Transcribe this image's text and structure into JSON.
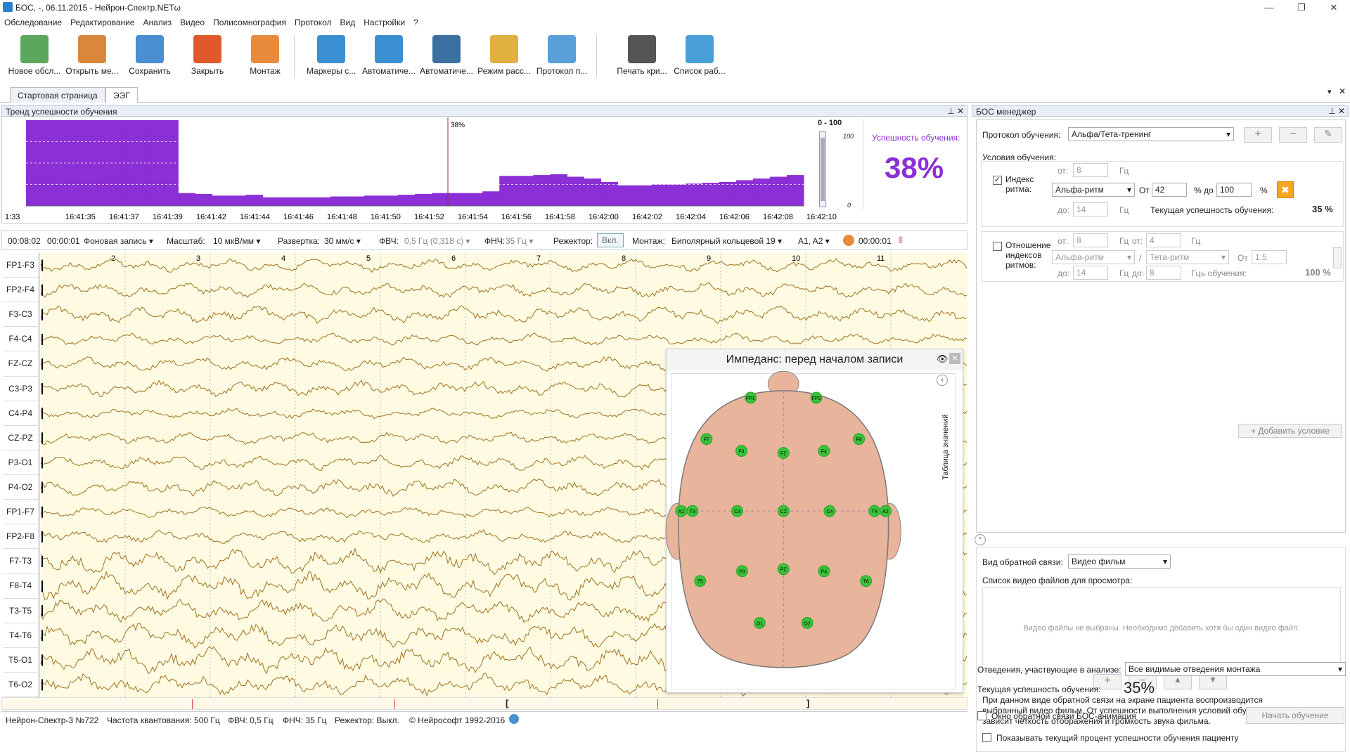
{
  "window": {
    "title": "БОС, -, 06.11.2015 - Нейрон-Спектр.NETω",
    "controls": [
      "—",
      "❐",
      "✕"
    ]
  },
  "menu": [
    "Обследование",
    "Редактирование",
    "Анализ",
    "Видео",
    "Полисомнография",
    "Протокол",
    "Вид",
    "Настройки",
    "?"
  ],
  "toolbar": [
    {
      "label": "Новое обсл...",
      "icon": "new-exam-icon",
      "color": "#5ba85b"
    },
    {
      "label": "Открыть ме...",
      "icon": "open-folder-icon",
      "color": "#d9873a"
    },
    {
      "label": "Сохранить",
      "icon": "save-icon",
      "color": "#4a8fcf"
    },
    {
      "label": "Закрыть",
      "icon": "close-exam-icon",
      "color": "#e0592a"
    },
    {
      "label": "Монтаж",
      "icon": "montage-head-icon",
      "color": "#e88a3c"
    },
    {
      "label": "Маркеры с...",
      "icon": "markers-wave-icon",
      "color": "#3a8fd0"
    },
    {
      "label": "Автоматиче...",
      "icon": "auto-analysis-icon",
      "color": "#3a8fd0"
    },
    {
      "label": "Автоматиче...",
      "icon": "auto-detect-icon",
      "color": "#3a6fa0"
    },
    {
      "label": "Режим расс...",
      "icon": "view-mode-icon",
      "color": "#e0b040"
    },
    {
      "label": "Протокол п...",
      "icon": "protocol-icon",
      "color": "#5a9fd8"
    },
    {
      "label": "Печать кри...",
      "icon": "printer-icon",
      "color": "#555555"
    },
    {
      "label": "Список раб...",
      "icon": "window-list-icon",
      "color": "#4a9fd8"
    }
  ],
  "tabs": [
    "Стартовая страница",
    "ЭЭГ"
  ],
  "trend": {
    "title": "Тренд успешности обучения",
    "range_label": "0 - 100",
    "scale_max": "100",
    "scale_min": "0",
    "success_label": "Успешность обучения:",
    "success_value": "38%",
    "marker_label": "38%",
    "time_ticks": [
      "1:33",
      "16:41:35",
      "16:41:37",
      "16:41:39",
      "16:41:42",
      "16:41:44",
      "16:41:46",
      "16:41:48",
      "16:41:50",
      "16:41:52",
      "16:41:54",
      "16:41:56",
      "16:41:58",
      "16:42:00",
      "16:42:02",
      "16:42:04",
      "16:42:06",
      "16:42:08",
      "16:42:10"
    ],
    "bar_color": "#8b2fd6",
    "chart_data": {
      "type": "bar",
      "values": [
        100,
        100,
        100,
        100,
        100,
        100,
        100,
        100,
        100,
        15,
        14,
        12,
        12,
        13,
        10,
        10,
        10,
        10,
        11,
        11,
        12,
        12,
        13,
        14,
        15,
        15,
        15,
        17,
        35,
        35,
        36,
        37,
        34,
        32,
        28,
        24,
        24,
        25,
        25,
        26,
        27,
        28,
        30,
        32,
        34,
        36
      ]
    }
  },
  "eeg_toolbar": {
    "time": "00:08:02",
    "elapsed": "00:00:01",
    "record": "Фоновая запись",
    "scale_label": "Масштаб:",
    "scale": "10 мкВ/мм",
    "sweep_label": "Развертка:",
    "sweep": "30 мм/с",
    "hpf_label": "ФВЧ:",
    "hpf": "0,5 Гц (0,318 с)",
    "lpf_label": "ФНЧ:",
    "lpf": "35 Гц",
    "notch_label": "Режектор:",
    "notch": "Вкл.",
    "montage_label": "Монтаж:",
    "montage": "Биполярный кольцевой 19",
    "ref": "A1, A2",
    "timer": "00:00:01"
  },
  "channels": [
    "FP1-F3",
    "FP2-F4",
    "F3-C3",
    "F4-C4",
    "FZ-CZ",
    "C3-P3",
    "C4-P4",
    "CZ-PZ",
    "P3-O1",
    "P4-O2",
    "FP1-F7",
    "FP2-F8",
    "F7-T3",
    "F8-T4",
    "T3-T5",
    "T4-T6",
    "T5-O1",
    "T6-O2"
  ],
  "second_marks": [
    "2",
    "3",
    "4",
    "5",
    "6",
    "7",
    "8",
    "9",
    "10",
    "11"
  ],
  "eeg_trace_color": "#a07020",
  "impedance": {
    "title": "Импеданс: перед началом записи",
    "side_label": "Таблица значений",
    "electrodes": [
      "FP1",
      "FP2",
      "F7",
      "F3",
      "FZ",
      "F4",
      "F8",
      "A1",
      "T3",
      "C3",
      "CZ",
      "C4",
      "T4",
      "A2",
      "T5",
      "P3",
      "PZ",
      "P4",
      "T6",
      "O1",
      "O2"
    ],
    "electrode_color": "#3cc03c",
    "head_color": "#e8b49c"
  },
  "statusbar": {
    "device": "Нейрон-Спектр-3 №722",
    "rate": "Частота квантования:  500 Гц",
    "hpf": "ФВЧ:  0,5 Гц",
    "lpf": "ФНЧ:  35 Гц",
    "notch": "Режектор:  Выкл.",
    "copyright": "© Нейрософт 1992-2016"
  },
  "bos": {
    "title": "БОС менеджер",
    "protocol_label": "Протокол обучения:",
    "protocol": "Альфа/Тета-тренинг",
    "conditions_label": "Условия обучения:",
    "cond1": {
      "check": "✓",
      "name1": "Индекс",
      "name2": "ритма:",
      "from_label": "от:",
      "from": "8",
      "to_label": "до:",
      "to": "14",
      "hz": "Гц",
      "rhythm": "Альфа-ритм",
      "ot": "От",
      "pct_from": "42",
      "pct_to_label": "% до",
      "pct_to": "100",
      "pct": "%",
      "success_label": "Текущая успешность обучения:",
      "success": "35 %"
    },
    "cond2": {
      "name1": "Отношение",
      "name2": "индексов",
      "name3": "ритмов:",
      "from1": "8",
      "to1": "14",
      "from2": "4",
      "to2": "8",
      "r1": "Альфа-ритм",
      "r2": "Тета-ритм",
      "ot": "От",
      "val": "1,5",
      "tail": "ь обучения:",
      "success": "100 %"
    },
    "add_condition": "Добавить условие",
    "feedback_label": "Вид обратной связи:",
    "feedback": "Видео фильм",
    "video_list_label": "Список видео файлов для просмотра:",
    "video_empty": "Видео файлы не выбраны. Необходимо добавить хотя бы один видео файл.",
    "description": "При данном виде обратной связи на экране пациента воспроизводится выбранный видео фильм. От успешности выполнения условий обучения зависит четкость отображения и громкость звука фильма.",
    "show_pct": "Показывать текущий процент успешности обучения пациенту",
    "leads_label": "Отведения, участвующие в анализе:",
    "leads": "Все видимые отведения монтажа",
    "current_label": "Текущая успешность обучения:",
    "current": "35%",
    "anim": "Окно обратной связи БОС-анимация",
    "start": "Начать обучение"
  }
}
